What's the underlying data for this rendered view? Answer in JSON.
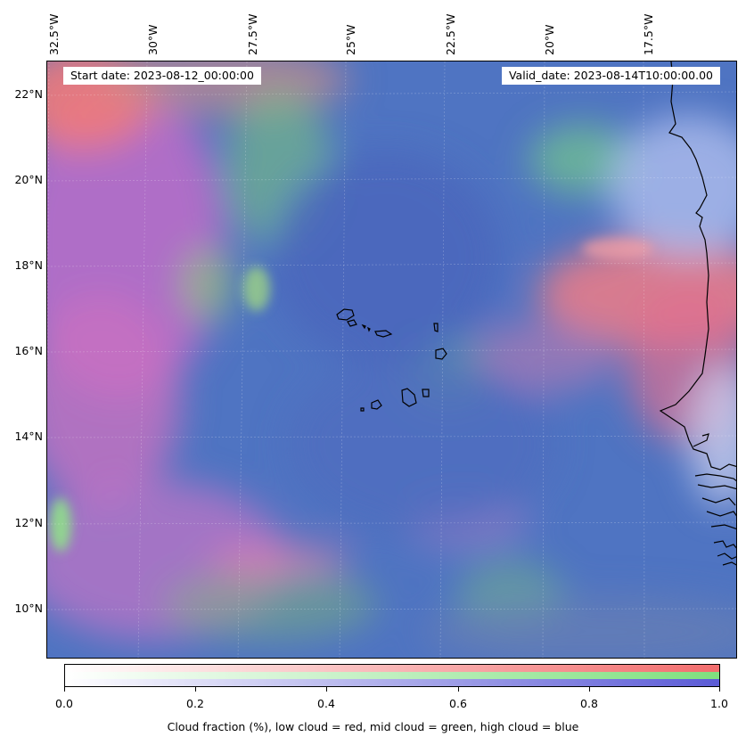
{
  "header": {
    "start_date": "Start date: 2023-08-12_00:00:00",
    "valid_date": "Valid_date: 2023-08-14T10:00:00.00"
  },
  "axes": {
    "lon_labels": [
      "32.5°W",
      "30°W",
      "27.5°W",
      "25°W",
      "22.5°W",
      "20°W",
      "17.5°W"
    ],
    "lat_labels": [
      "22°N",
      "20°N",
      "18°N",
      "16°N",
      "14°N",
      "12°N",
      "10°N"
    ]
  },
  "colorbar": {
    "ticks": [
      "0.0",
      "0.2",
      "0.4",
      "0.6",
      "0.8",
      "1.0"
    ],
    "caption": "Cloud fraction (%), low cloud = red, mid cloud = green, high cloud = blue",
    "colors": {
      "low": "#f26d6d",
      "mid": "#7ee07e",
      "high": "#5b5bd6"
    }
  },
  "map": {
    "background_color": "#4f74c2",
    "coastline_color": "#000000",
    "region": "Cabo Verde and West African coast"
  }
}
